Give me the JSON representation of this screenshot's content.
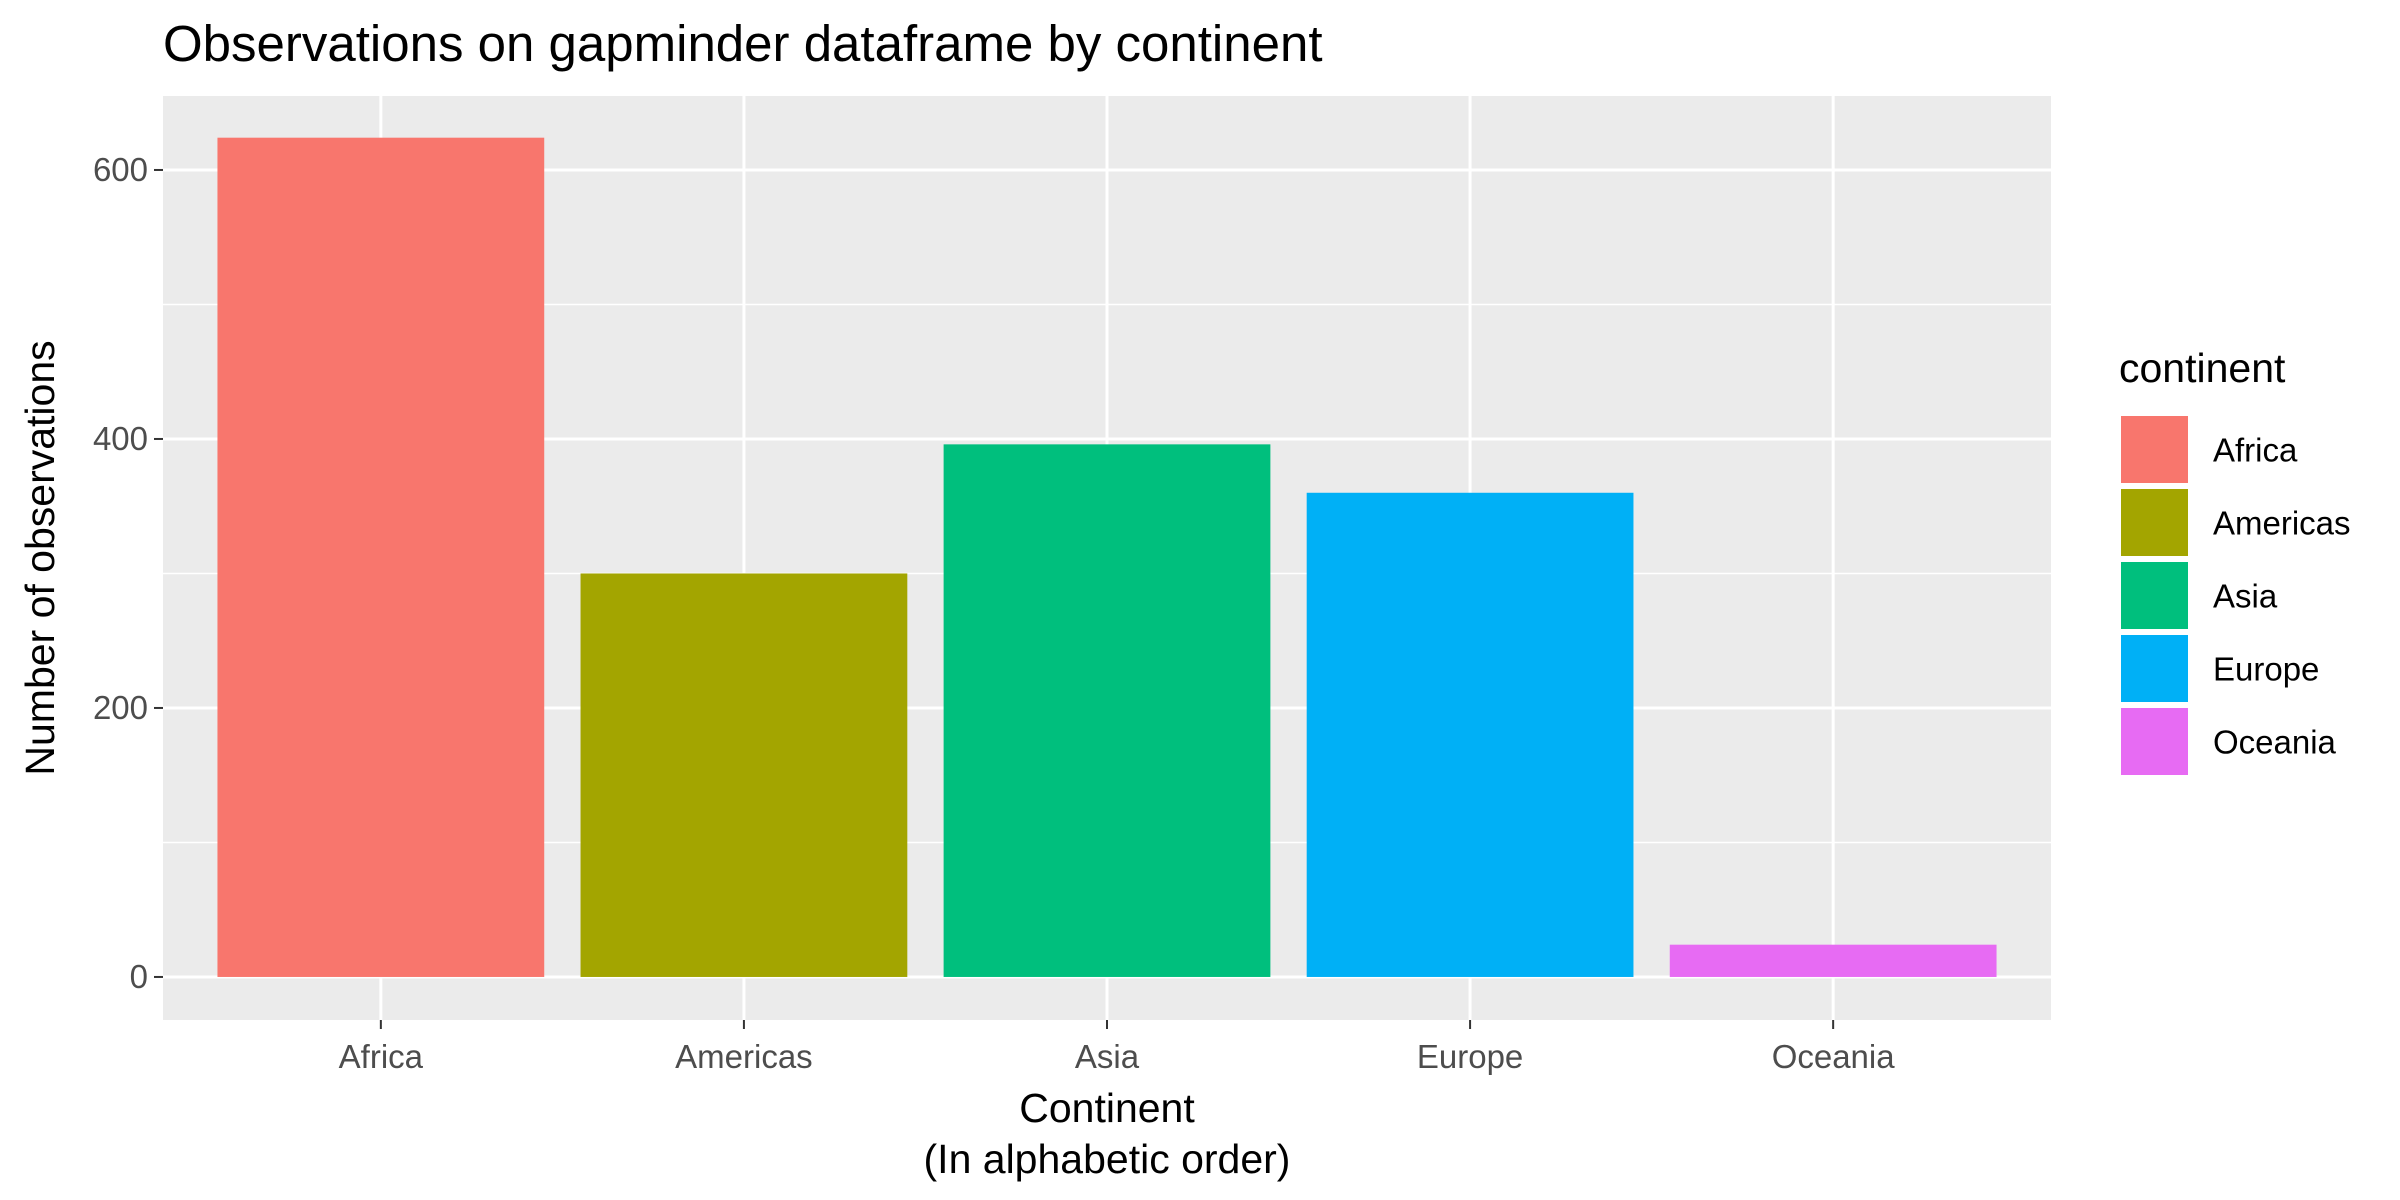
{
  "chart_data": {
    "type": "bar",
    "title": "Observations on gapminder dataframe by continent",
    "xlabel_lines": [
      "Continent",
      "(In alphabetic order)"
    ],
    "ylabel": "Number of observations",
    "categories": [
      "Africa",
      "Americas",
      "Asia",
      "Europe",
      "Oceania"
    ],
    "values": [
      624,
      300,
      396,
      360,
      24
    ],
    "colors": [
      "#F8766D",
      "#A3A500",
      "#00BF7D",
      "#00B0F6",
      "#E76BF3"
    ],
    "ylim": [
      -32,
      655
    ],
    "yticks": [
      0,
      200,
      400,
      600
    ],
    "ytick_labels": [
      "0",
      "200",
      "400",
      "600"
    ],
    "grid": true,
    "panel_background": "#EBEBEB",
    "legend": {
      "title": "continent",
      "placement": "right",
      "entries": [
        "Africa",
        "Americas",
        "Asia",
        "Europe",
        "Oceania"
      ]
    }
  }
}
